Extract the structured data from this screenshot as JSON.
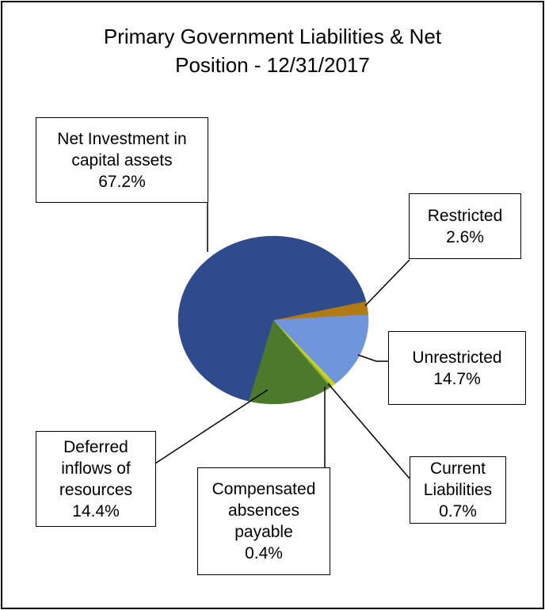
{
  "chart_data": {
    "type": "pie",
    "title": "Primary Government Liabilities & Net Position - 12/31/2017",
    "categories": [
      "Restricted",
      "Unrestricted",
      "Current Liabilities",
      "Compensated absences payable",
      "Deferred inflows of resources",
      "Net Investment in capital assets"
    ],
    "values": [
      2.6,
      14.7,
      0.7,
      0.4,
      14.4,
      67.2
    ],
    "value_labels": [
      "2.6%",
      "14.7%",
      "0.7%",
      "0.4%",
      "14.4%",
      "67.2%"
    ],
    "colors": [
      "#b27a12",
      "#6f95dc",
      "#c9d21e",
      "#86ad3a",
      "#4c7a2c",
      "#2f4b8c"
    ]
  }
}
